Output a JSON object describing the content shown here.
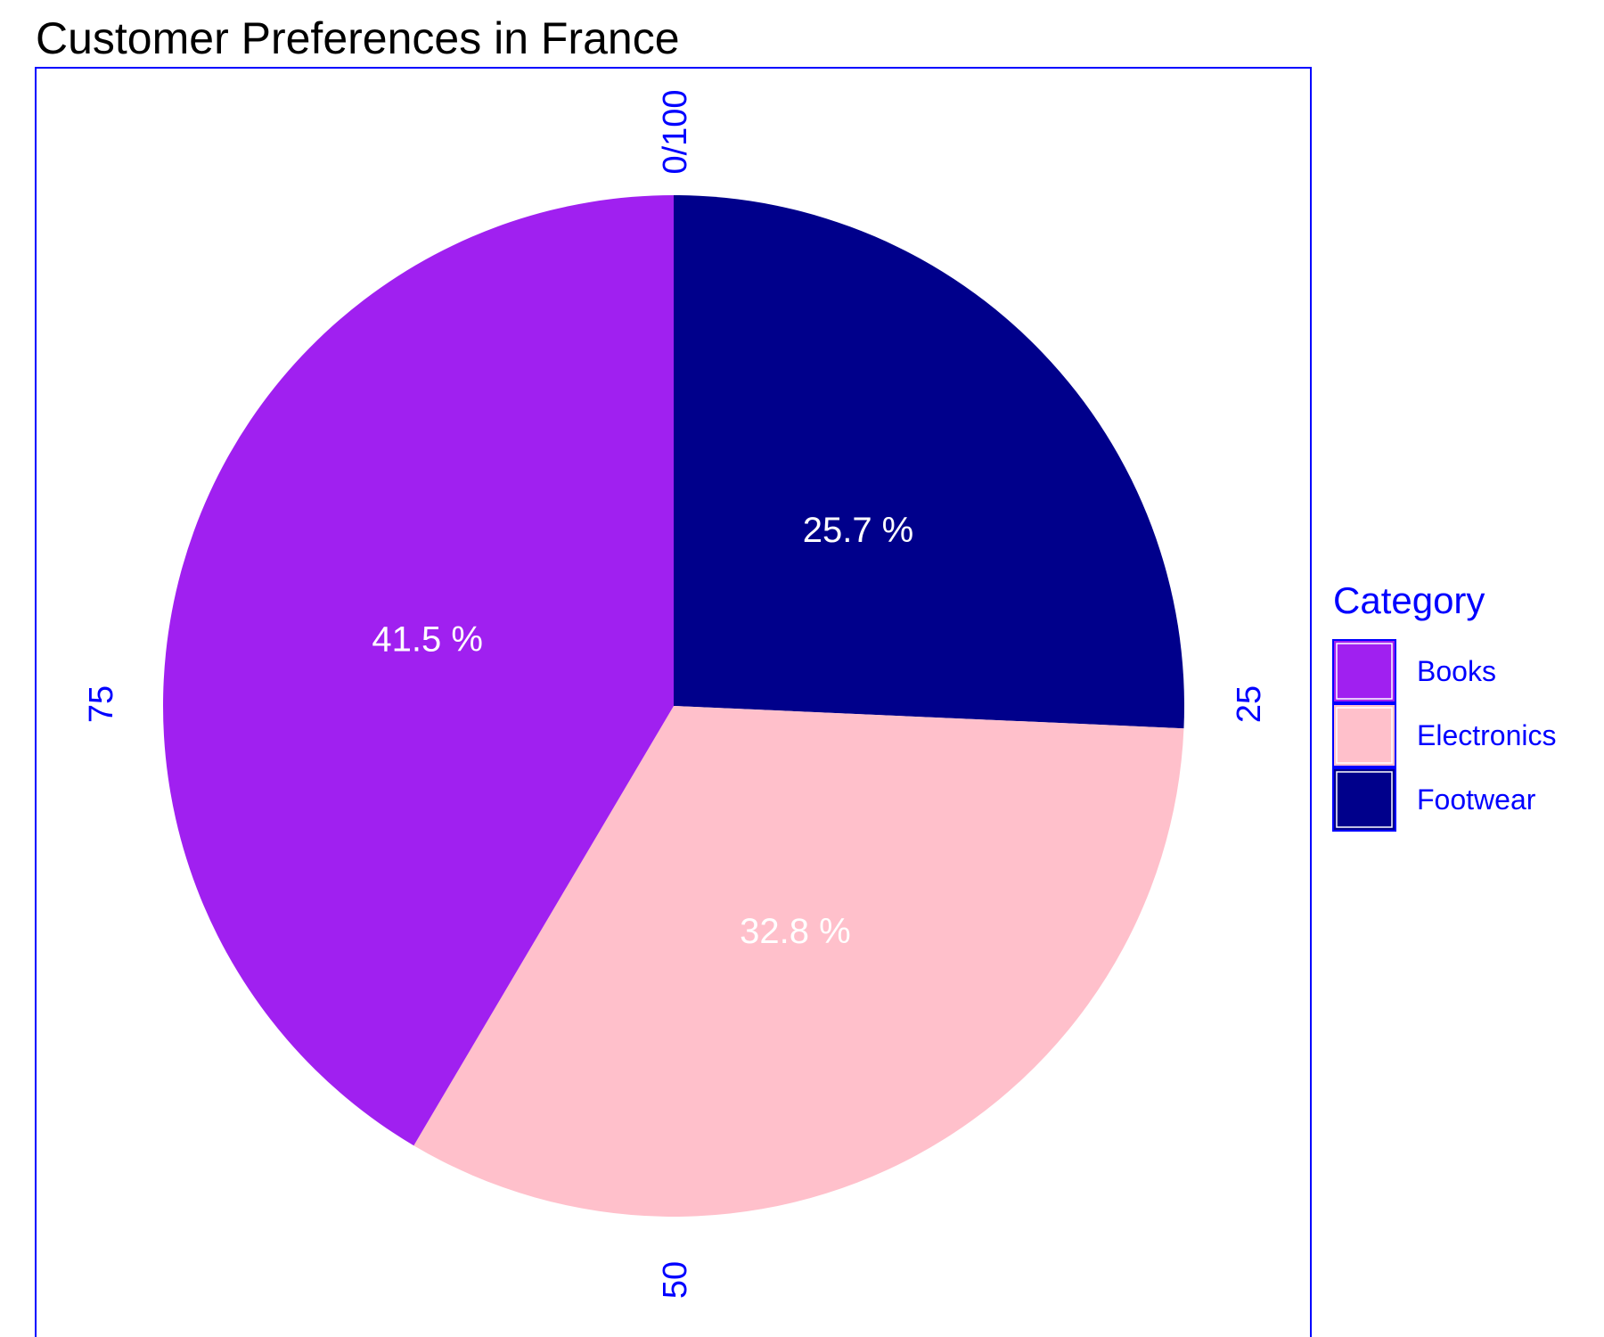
{
  "chart_data": {
    "type": "pie",
    "title": "Customer Preferences in France",
    "categories": [
      "Books",
      "Electronics",
      "Footwear"
    ],
    "values": [
      41.5,
      32.8,
      25.7
    ],
    "value_labels": [
      "41.5 %",
      "32.8 %",
      "25.7 %"
    ],
    "colors": [
      "#a020f0",
      "#ffc0cb",
      "#00008b"
    ],
    "axis_ticks": [
      "0/100",
      "25",
      "50",
      "75"
    ],
    "legend": {
      "title": "Category",
      "placement": "right"
    },
    "axis_color": "#0000ff"
  }
}
